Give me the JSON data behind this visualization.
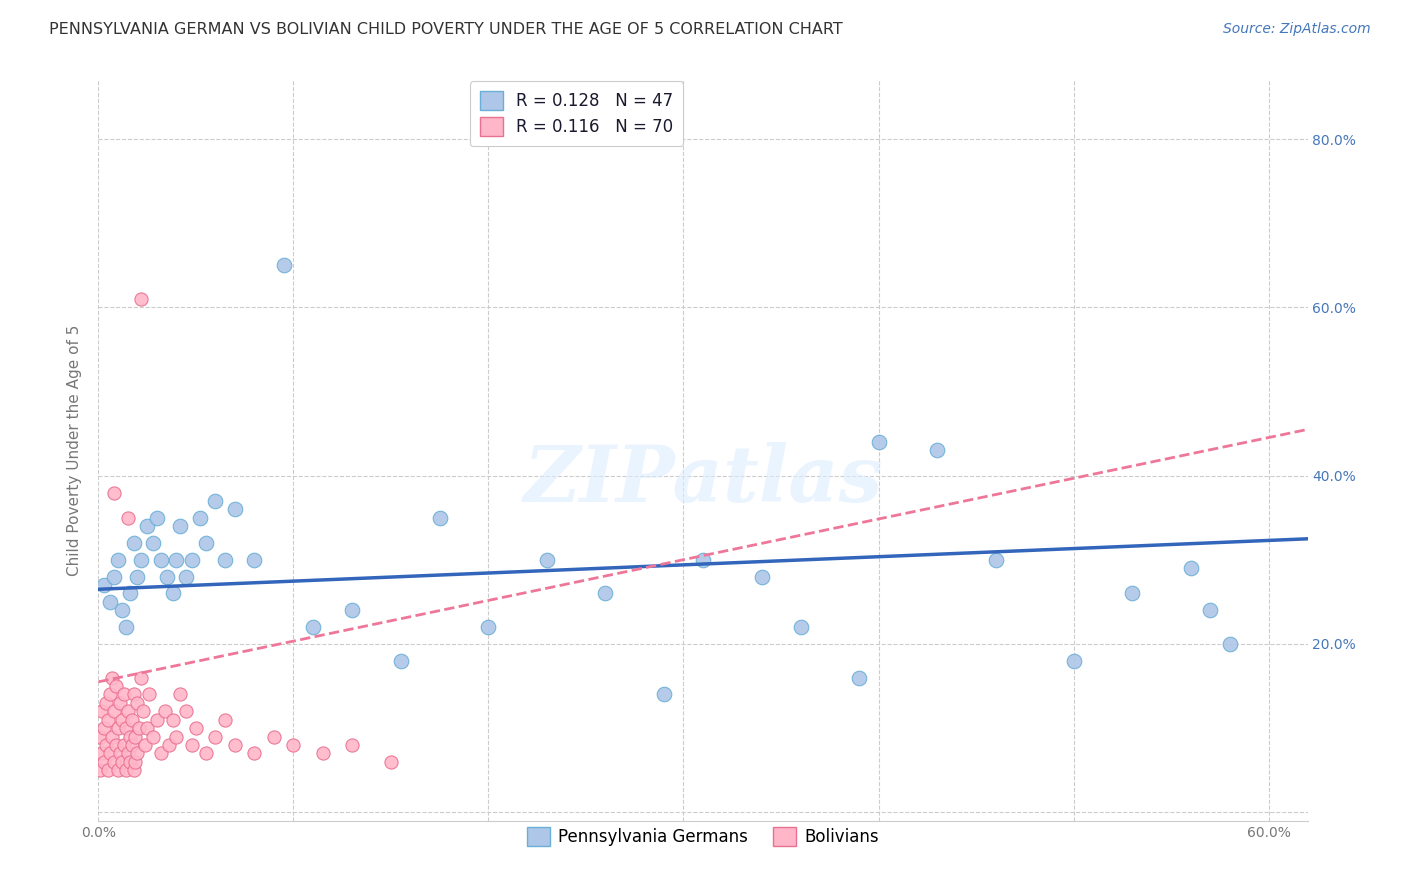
{
  "title": "PENNSYLVANIA GERMAN VS BOLIVIAN CHILD POVERTY UNDER THE AGE OF 5 CORRELATION CHART",
  "source": "Source: ZipAtlas.com",
  "ylabel": "Child Poverty Under the Age of 5",
  "xlim": [
    0.0,
    0.62
  ],
  "ylim": [
    -0.01,
    0.87
  ],
  "xticks": [
    0.0,
    0.1,
    0.2,
    0.3,
    0.4,
    0.5,
    0.6
  ],
  "yticks": [
    0.0,
    0.2,
    0.4,
    0.6,
    0.8
  ],
  "xticklabels": [
    "0.0%",
    "",
    "",
    "",
    "",
    "",
    "60.0%"
  ],
  "yticklabels": [
    "",
    "20.0%",
    "40.0%",
    "60.0%",
    "80.0%"
  ],
  "background_color": "#ffffff",
  "grid_color": "#cccccc",
  "pg_color": "#aec6e8",
  "pg_edge_color": "#6aafd6",
  "bo_color": "#ffb6c8",
  "bo_edge_color": "#e87090",
  "pg_line_color": "#3366bb",
  "bo_line_color": "#ee7799",
  "pg_R": 0.128,
  "pg_N": 47,
  "bo_R": 0.116,
  "bo_N": 70,
  "legend_label_pg": "Pennsylvania Germans",
  "legend_label_bo": "Bolivians",
  "pg_scatter_x": [
    0.003,
    0.006,
    0.008,
    0.01,
    0.012,
    0.014,
    0.016,
    0.018,
    0.02,
    0.022,
    0.025,
    0.028,
    0.03,
    0.032,
    0.035,
    0.038,
    0.04,
    0.042,
    0.045,
    0.048,
    0.052,
    0.055,
    0.06,
    0.065,
    0.07,
    0.08,
    0.095,
    0.11,
    0.13,
    0.155,
    0.175,
    0.2,
    0.23,
    0.26,
    0.29,
    0.31,
    0.34,
    0.36,
    0.39,
    0.4,
    0.43,
    0.46,
    0.5,
    0.53,
    0.56,
    0.57,
    0.58
  ],
  "pg_scatter_y": [
    0.27,
    0.25,
    0.28,
    0.3,
    0.24,
    0.22,
    0.26,
    0.32,
    0.28,
    0.3,
    0.34,
    0.32,
    0.35,
    0.3,
    0.28,
    0.26,
    0.3,
    0.34,
    0.28,
    0.3,
    0.35,
    0.32,
    0.37,
    0.3,
    0.36,
    0.3,
    0.65,
    0.22,
    0.24,
    0.18,
    0.35,
    0.22,
    0.3,
    0.26,
    0.14,
    0.3,
    0.28,
    0.22,
    0.16,
    0.44,
    0.43,
    0.3,
    0.18,
    0.26,
    0.29,
    0.24,
    0.2
  ],
  "bo_scatter_x": [
    0.001,
    0.001,
    0.002,
    0.002,
    0.003,
    0.003,
    0.004,
    0.004,
    0.005,
    0.005,
    0.006,
    0.006,
    0.007,
    0.007,
    0.008,
    0.008,
    0.009,
    0.009,
    0.01,
    0.01,
    0.011,
    0.011,
    0.012,
    0.012,
    0.013,
    0.013,
    0.014,
    0.014,
    0.015,
    0.015,
    0.016,
    0.016,
    0.017,
    0.017,
    0.018,
    0.018,
    0.019,
    0.019,
    0.02,
    0.02,
    0.021,
    0.022,
    0.023,
    0.024,
    0.025,
    0.026,
    0.028,
    0.03,
    0.032,
    0.034,
    0.036,
    0.038,
    0.04,
    0.042,
    0.045,
    0.048,
    0.05,
    0.055,
    0.06,
    0.065,
    0.07,
    0.08,
    0.09,
    0.1,
    0.115,
    0.13,
    0.15,
    0.022,
    0.008,
    0.015
  ],
  "bo_scatter_y": [
    0.05,
    0.09,
    0.07,
    0.12,
    0.06,
    0.1,
    0.08,
    0.13,
    0.05,
    0.11,
    0.07,
    0.14,
    0.09,
    0.16,
    0.06,
    0.12,
    0.08,
    0.15,
    0.05,
    0.1,
    0.07,
    0.13,
    0.06,
    0.11,
    0.08,
    0.14,
    0.05,
    0.1,
    0.07,
    0.12,
    0.06,
    0.09,
    0.08,
    0.11,
    0.05,
    0.14,
    0.06,
    0.09,
    0.07,
    0.13,
    0.1,
    0.16,
    0.12,
    0.08,
    0.1,
    0.14,
    0.09,
    0.11,
    0.07,
    0.12,
    0.08,
    0.11,
    0.09,
    0.14,
    0.12,
    0.08,
    0.1,
    0.07,
    0.09,
    0.11,
    0.08,
    0.07,
    0.09,
    0.08,
    0.07,
    0.08,
    0.06,
    0.61,
    0.38,
    0.35
  ],
  "watermark": "ZIPatlas",
  "title_fontsize": 11.5,
  "axis_label_fontsize": 11,
  "tick_fontsize": 10,
  "legend_fontsize": 12,
  "source_fontsize": 10
}
